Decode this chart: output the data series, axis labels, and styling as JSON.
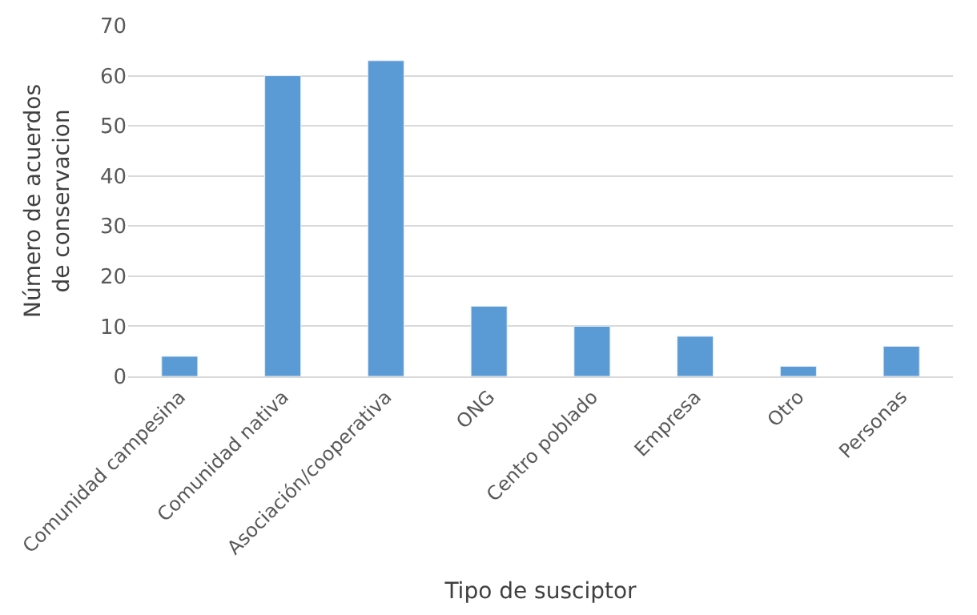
{
  "chart_data": {
    "type": "bar",
    "xlabel": "Tipo de susciptor",
    "ylabel": "Número de acuerdos\nde conservacion",
    "categories": [
      "Comunidad campesina",
      "Comunidad nativa",
      "Asociación/cooperativa",
      "ONG",
      "Centro poblado",
      "Empresa",
      "Otro",
      "Personas"
    ],
    "values": [
      4,
      60,
      63,
      14,
      10,
      8,
      2,
      6
    ],
    "color": "#5b9bd5",
    "ylim": [
      0,
      70
    ],
    "yticks": [
      0,
      10,
      20,
      30,
      40,
      50,
      60,
      70
    ],
    "grid": "y",
    "legend": false
  }
}
